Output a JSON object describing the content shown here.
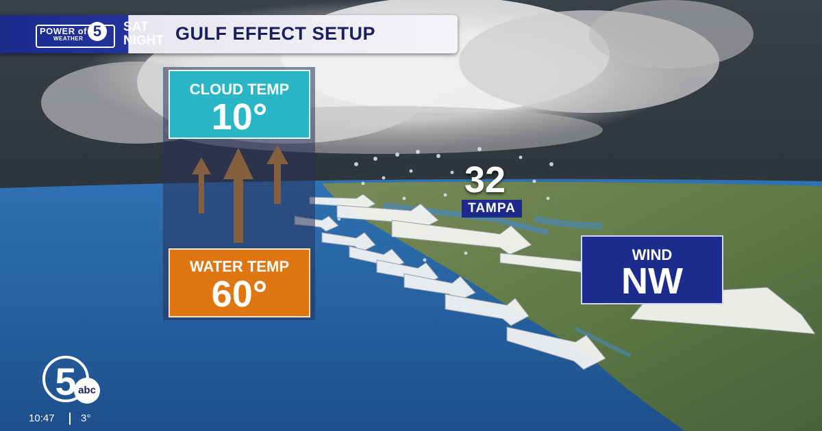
{
  "header": {
    "logo_line1": "POWER of",
    "logo_line2": "WEATHER",
    "logo_number": "5",
    "day_line1": "SAT",
    "day_line2": "NIGHT",
    "title": "GULF EFFECT SETUP"
  },
  "cloud": {
    "label": "CLOUD TEMP",
    "value": "10°"
  },
  "water": {
    "label": "WATER TEMP",
    "value": "60°"
  },
  "city": {
    "temperature": "32",
    "name": "TAMPA"
  },
  "wind": {
    "label": "WIND",
    "direction": "NW"
  },
  "station": {
    "number": "5",
    "network": "abc",
    "time": "10:47",
    "temperature": "3°"
  },
  "colors": {
    "header_blue": "#1a2b8c",
    "cloud_box": "#2ab6c5",
    "water_box": "#e07612",
    "wind_box": "#1d2b8d",
    "arrow_orange": "#f39a1e"
  }
}
